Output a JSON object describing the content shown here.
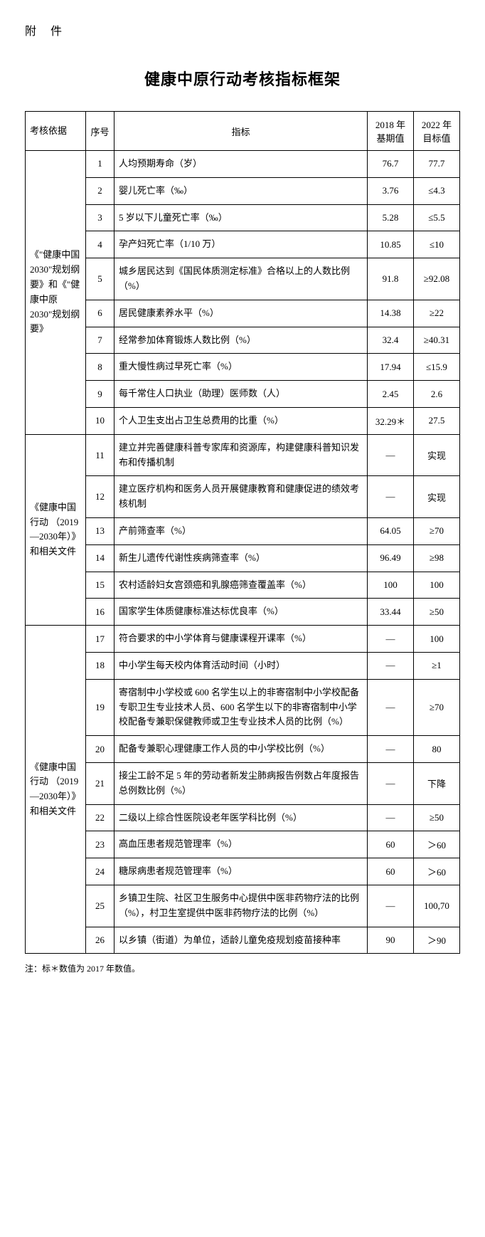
{
  "header_label": "附 件",
  "title": "健康中原行动考核指标框架",
  "table": {
    "headers": {
      "basis": "考核依据",
      "num": "序号",
      "indicator": "指标",
      "base_value": "2018 年基期值",
      "target_value": "2022 年目标值"
    },
    "groups": [
      {
        "basis": "《\"健康中国2030\"规划纲要》和《\"健康中原 2030\"规划纲要》",
        "rows": [
          {
            "num": "1",
            "indicator": "人均预期寿命（岁）",
            "base": "76.7",
            "target": "77.7"
          },
          {
            "num": "2",
            "indicator": "婴儿死亡率（‰）",
            "base": "3.76",
            "target": "≤4.3"
          },
          {
            "num": "3",
            "indicator": "5 岁以下儿童死亡率（‰）",
            "base": "5.28",
            "target": "≤5.5"
          },
          {
            "num": "4",
            "indicator": "孕产妇死亡率（1/10 万）",
            "base": "10.85",
            "target": "≤10"
          },
          {
            "num": "5",
            "indicator": "城乡居民达到《国民体质测定标准》合格以上的人数比例（%）",
            "base": "91.8",
            "target": "≥92.08"
          },
          {
            "num": "6",
            "indicator": "居民健康素养水平（%）",
            "base": "14.38",
            "target": "≥22"
          },
          {
            "num": "7",
            "indicator": "经常参加体育锻炼人数比例（%）",
            "base": "32.4",
            "target": "≥40.31"
          },
          {
            "num": "8",
            "indicator": "重大慢性病过早死亡率（%）",
            "base": "17.94",
            "target": "≤15.9"
          },
          {
            "num": "9",
            "indicator": "每千常住人口执业（助理）医师数（人）",
            "base": "2.45",
            "target": "2.6"
          },
          {
            "num": "10",
            "indicator": "个人卫生支出占卫生总费用的比重（%）",
            "base": "32.29＊",
            "target": "27.5"
          }
        ]
      },
      {
        "basis": "《健康中国行动 （2019—2030年）》和相关文件",
        "rows": [
          {
            "num": "11",
            "indicator": "建立并完善健康科普专家库和资源库，构建健康科普知识发布和传播机制",
            "base": "—",
            "target": "实现"
          },
          {
            "num": "12",
            "indicator": "建立医疗机构和医务人员开展健康教育和健康促进的绩效考核机制",
            "base": "—",
            "target": "实现"
          },
          {
            "num": "13",
            "indicator": "产前筛查率（%）",
            "base": "64.05",
            "target": "≥70"
          },
          {
            "num": "14",
            "indicator": "新生儿遗传代谢性疾病筛查率（%）",
            "base": "96.49",
            "target": "≥98"
          },
          {
            "num": "15",
            "indicator": "农村适龄妇女宫颈癌和乳腺癌筛查覆盖率（%）",
            "base": "100",
            "target": "100"
          },
          {
            "num": "16",
            "indicator": "国家学生体质健康标准达标优良率（%）",
            "base": "33.44",
            "target": "≥50"
          }
        ]
      },
      {
        "basis": "《健康中国行动 （2019—2030年）》和相关文件",
        "rows": [
          {
            "num": "17",
            "indicator": "符合要求的中小学体育与健康课程开课率（%）",
            "base": "—",
            "target": "100"
          },
          {
            "num": "18",
            "indicator": "中小学生每天校内体育活动时间（小时）",
            "base": "—",
            "target": "≥1"
          },
          {
            "num": "19",
            "indicator": "寄宿制中小学校或 600 名学生以上的非寄宿制中小学校配备专职卫生专业技术人员、600 名学生以下的非寄宿制中小学校配备专兼职保健教师或卫生专业技术人员的比例（%）",
            "base": "—",
            "target": "≥70"
          },
          {
            "num": "20",
            "indicator": "配备专兼职心理健康工作人员的中小学校比例（%）",
            "base": "—",
            "target": "80"
          },
          {
            "num": "21",
            "indicator": "接尘工龄不足 5 年的劳动者新发尘肺病报告例数占年度报告总例数比例（%）",
            "base": "—",
            "target": "下降"
          },
          {
            "num": "22",
            "indicator": "二级以上综合性医院设老年医学科比例（%）",
            "base": "—",
            "target": "≥50"
          },
          {
            "num": "23",
            "indicator": "高血压患者规范管理率（%）",
            "base": "60",
            "target": "＞60"
          },
          {
            "num": "24",
            "indicator": "糖尿病患者规范管理率（%）",
            "base": "60",
            "target": "＞60"
          },
          {
            "num": "25",
            "indicator": "乡镇卫生院、社区卫生服务中心提供中医非药物疗法的比例（%），村卫生室提供中医非药物疗法的比例（%）",
            "base": "—",
            "target": "100,70"
          },
          {
            "num": "26",
            "indicator": "以乡镇（街道）为单位，适龄儿童免疫规划疫苗接种率",
            "base": "90",
            "target": "＞90"
          }
        ]
      }
    ]
  },
  "footnote": "注：标＊数值为 2017 年数值。"
}
